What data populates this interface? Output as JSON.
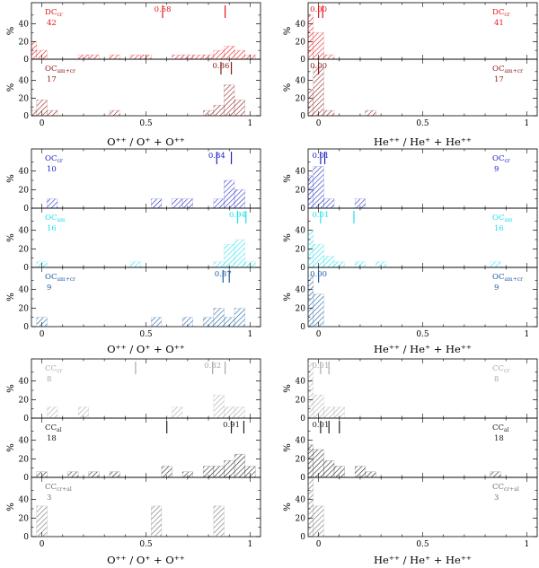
{
  "chart_data": [
    {
      "type": "bar",
      "group": "top",
      "side": "left",
      "label": "DC",
      "label_sub": "cr",
      "n": "42",
      "median_label": "0.58",
      "color": "#e8141c",
      "median_x": 0.58,
      "marker_x": 0.88,
      "x": [
        -0.05,
        0.0,
        0.05,
        0.1,
        0.15,
        0.2,
        0.25,
        0.3,
        0.35,
        0.4,
        0.45,
        0.5,
        0.55,
        0.6,
        0.65,
        0.7,
        0.75,
        0.8,
        0.85,
        0.9,
        0.95,
        1.0
      ],
      "values": [
        20,
        10,
        0,
        0,
        0,
        5,
        5,
        0,
        5,
        0,
        5,
        5,
        0,
        0,
        5,
        5,
        5,
        5,
        10,
        15,
        10,
        5
      ],
      "ylabel": "%",
      "yticks": [
        "0",
        "20",
        "40"
      ],
      "ylim": [
        0,
        60
      ]
    },
    {
      "type": "bar",
      "group": "top",
      "side": "left",
      "label": "OC",
      "label_sub": "am+cr",
      "n": "17",
      "median_label": "0.86",
      "color": "#8b1a1a",
      "median_x": 0.86,
      "marker_x": 0.91,
      "x": [
        -0.05,
        0.0,
        0.05,
        0.35,
        0.8,
        0.85,
        0.9,
        0.95
      ],
      "values": [
        6,
        18,
        6,
        6,
        6,
        12,
        35,
        18
      ],
      "ylabel": "%",
      "yticks": [
        "0",
        "20",
        "40"
      ],
      "ylim": [
        0,
        60
      ]
    },
    {
      "type": "bar",
      "group": "top",
      "side": "right",
      "label": "DC",
      "label_sub": "cr",
      "n": "41",
      "median_label": "0.00",
      "color": "#e8141c",
      "median_x": 0.0,
      "marker_x": 0.02,
      "x": [
        -0.05,
        0.0,
        0.05
      ],
      "values": [
        50,
        30,
        5
      ],
      "ylabel": "%",
      "yticks": [
        "0",
        "20",
        "40"
      ],
      "ylim": [
        0,
        60
      ]
    },
    {
      "type": "bar",
      "group": "top",
      "side": "right",
      "label": "OC",
      "label_sub": "am+cr",
      "n": "17",
      "median_label": "0.00",
      "color": "#8b1a1a",
      "median_x": 0.0,
      "marker_x": null,
      "x": [
        -0.05,
        0.0,
        0.05,
        0.25
      ],
      "values": [
        30,
        55,
        6,
        6
      ],
      "ylabel": "%",
      "yticks": [
        "0",
        "20",
        "40"
      ],
      "ylim": [
        0,
        60
      ]
    },
    {
      "type": "bar",
      "group": "middle",
      "side": "left",
      "label": "OC",
      "label_sub": "cr",
      "n": "10",
      "median_label": "0.84",
      "color": "#1f24c4",
      "median_x": 0.84,
      "marker_x": 0.91,
      "x": [
        0.05,
        0.55,
        0.65,
        0.7,
        0.85,
        0.9,
        0.95
      ],
      "values": [
        10,
        10,
        10,
        10,
        10,
        30,
        20
      ],
      "ylabel": "%",
      "yticks": [
        "0",
        "20",
        "40"
      ],
      "ylim": [
        0,
        60
      ]
    },
    {
      "type": "bar",
      "group": "middle",
      "side": "left",
      "label": "OC",
      "label_sub": "am",
      "n": "16",
      "median_label": "0.94",
      "color": "#22e0ee",
      "median_x": 0.94,
      "marker_x": 0.98,
      "x": [
        0.0,
        0.45,
        0.85,
        0.9,
        0.95,
        1.0
      ],
      "values": [
        6,
        6,
        6,
        25,
        30,
        6
      ],
      "ylabel": "%",
      "yticks": [
        "0",
        "20",
        "40"
      ],
      "ylim": [
        0,
        60
      ]
    },
    {
      "type": "bar",
      "group": "middle",
      "side": "left",
      "label": "OC",
      "label_sub": "am+cr",
      "n": "9",
      "median_label": "0.87",
      "color": "#1c5ea0",
      "median_x": 0.87,
      "marker_x": 0.9,
      "x": [
        0.0,
        0.55,
        0.7,
        0.8,
        0.85,
        0.9,
        0.95
      ],
      "values": [
        10,
        10,
        10,
        10,
        20,
        10,
        20
      ],
      "ylabel": "%",
      "yticks": [
        "0",
        "20",
        "40"
      ],
      "ylim": [
        0,
        60
      ]
    },
    {
      "type": "bar",
      "group": "middle",
      "side": "right",
      "label": "OC",
      "label_sub": "cr",
      "n": "9",
      "median_label": "0.01",
      "color": "#1f24c4",
      "median_x": 0.01,
      "marker_x": 0.03,
      "x": [
        -0.05,
        0.0,
        0.05,
        0.2
      ],
      "values": [
        35,
        45,
        10,
        10
      ],
      "ylabel": "%",
      "yticks": [
        "0",
        "20",
        "40"
      ],
      "ylim": [
        0,
        60
      ]
    },
    {
      "type": "bar",
      "group": "middle",
      "side": "right",
      "label": "OC",
      "label_sub": "am",
      "n": "16",
      "median_label": "0.01",
      "color": "#22e0ee",
      "median_x": 0.01,
      "marker_x": 0.17,
      "x": [
        -0.05,
        0.0,
        0.05,
        0.1,
        0.2,
        0.3,
        0.85
      ],
      "values": [
        40,
        25,
        12,
        6,
        6,
        6,
        6
      ],
      "ylabel": "%",
      "yticks": [
        "0",
        "20",
        "40"
      ],
      "ylim": [
        0,
        60
      ]
    },
    {
      "type": "bar",
      "group": "middle",
      "side": "right",
      "label": "OC",
      "label_sub": "am+cr",
      "n": "9",
      "median_label": "0.00",
      "color": "#1c5ea0",
      "median_x": 0.0,
      "marker_x": null,
      "x": [
        -0.05,
        0.0
      ],
      "values": [
        55,
        35
      ],
      "ylabel": "%",
      "yticks": [
        "0",
        "20",
        "40"
      ],
      "ylim": [
        0,
        60
      ]
    },
    {
      "type": "bar",
      "group": "bottom",
      "side": "left",
      "label": "CC",
      "label_sub": "cr",
      "n": "8",
      "median_label": "0.82",
      "color": "#a8a8a8",
      "median_x": 0.82,
      "marker_x": 0.88,
      "marker2_x": 0.45,
      "x": [
        0.05,
        0.2,
        0.65,
        0.85,
        0.9,
        0.95
      ],
      "values": [
        12,
        12,
        12,
        25,
        12,
        12
      ],
      "ylabel": "%",
      "yticks": [
        "0",
        "20",
        "40"
      ],
      "ylim": [
        0,
        60
      ]
    },
    {
      "type": "bar",
      "group": "bottom",
      "side": "left",
      "label": "CC",
      "label_sub": "al",
      "n": "18",
      "median_label": "0.91",
      "color": "#202020",
      "median_x": 0.91,
      "marker_x": 0.97,
      "marker2_x": 0.6,
      "x": [
        0.0,
        0.15,
        0.25,
        0.35,
        0.6,
        0.7,
        0.8,
        0.85,
        0.9,
        0.95,
        1.0
      ],
      "values": [
        6,
        6,
        6,
        6,
        12,
        6,
        12,
        12,
        18,
        25,
        12
      ],
      "ylabel": "%",
      "yticks": [
        "0",
        "20",
        "40"
      ],
      "ylim": [
        0,
        60
      ]
    },
    {
      "type": "bar",
      "group": "bottom",
      "side": "left",
      "label": "CC",
      "label_sub": "cr+al",
      "n": "3",
      "median_label": "",
      "color": "#707070",
      "median_x": null,
      "marker_x": null,
      "x": [
        0.0,
        0.55,
        0.85
      ],
      "values": [
        33,
        33,
        33
      ],
      "ylabel": "%",
      "yticks": [
        "0",
        "20",
        "40"
      ],
      "ylim": [
        0,
        60
      ]
    },
    {
      "type": "bar",
      "group": "bottom",
      "side": "right",
      "label": "CC",
      "label_sub": "cr",
      "n": "8",
      "median_label": "0.01",
      "color": "#a8a8a8",
      "median_x": 0.01,
      "marker_x": 0.05,
      "x": [
        -0.05,
        0.0,
        0.05,
        0.1
      ],
      "values": [
        60,
        25,
        12,
        12
      ],
      "ylabel": "%",
      "yticks": [
        "0",
        "20",
        "40"
      ],
      "ylim": [
        0,
        60
      ]
    },
    {
      "type": "bar",
      "group": "bottom",
      "side": "right",
      "label": "CC",
      "label_sub": "al",
      "n": "18",
      "median_label": "0.01",
      "color": "#202020",
      "median_x": 0.01,
      "marker_x": 0.05,
      "marker2_x": 0.1,
      "x": [
        -0.05,
        0.0,
        0.05,
        0.1,
        0.2,
        0.25,
        0.85
      ],
      "values": [
        35,
        30,
        18,
        12,
        12,
        6,
        6
      ],
      "ylabel": "%",
      "yticks": [
        "0",
        "20",
        "40"
      ],
      "ylim": [
        0,
        60
      ]
    },
    {
      "type": "bar",
      "group": "bottom",
      "side": "right",
      "label": "CC",
      "label_sub": "cr+al",
      "n": "3",
      "median_label": "",
      "color": "#707070",
      "median_x": null,
      "marker_x": null,
      "x": [
        -0.05,
        0.0
      ],
      "values": [
        65,
        33
      ],
      "ylabel": "%",
      "yticks": [
        "0",
        "20",
        "40"
      ],
      "ylim": [
        0,
        60
      ]
    }
  ],
  "axes": {
    "left_xlabel": "O⁺⁺ / O⁺ + O⁺⁺",
    "right_xlabel": "He⁺⁺ / He⁺ + He⁺⁺",
    "xticks": [
      "0",
      "0.5",
      "1"
    ],
    "xlim": [
      -0.05,
      1.05
    ]
  }
}
